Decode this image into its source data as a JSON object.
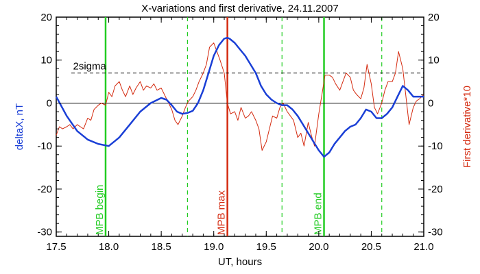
{
  "chart_data": {
    "type": "line",
    "title": "X-variations and first derivative, 24.11.2007",
    "xlabel": "UT, hours",
    "ylabel_left": "deltaX, nT",
    "ylabel_right": "First derivative*10",
    "xlim": [
      17.5,
      21.0
    ],
    "ylim": [
      -31,
      20
    ],
    "xticks": [
      17.5,
      18.0,
      18.5,
      19.0,
      19.5,
      20.0,
      20.5,
      21.0
    ],
    "xtick_labels": [
      "17.5",
      "18.0",
      "18.5",
      "19.0",
      "19.5",
      "20.0",
      "20.5",
      "21.0"
    ],
    "yticks": [
      -30,
      -20,
      -10,
      0,
      10,
      20
    ],
    "ytick_labels": [
      "-30",
      "-20",
      "-10",
      "0",
      "10",
      "20"
    ],
    "sigma_level": 7,
    "sigma_label": "2sigma",
    "colors": {
      "deltaX": "#1a3fd6",
      "derivative": "#d42b10",
      "begin_end": "#22cc22",
      "max": "#d42b10"
    },
    "markers": [
      {
        "x": 17.97,
        "label": "MPB begin",
        "kind": "begin_end"
      },
      {
        "x": 19.13,
        "label": "MPB max",
        "kind": "max"
      },
      {
        "x": 20.05,
        "label": "MPB end",
        "kind": "begin_end"
      }
    ],
    "dashed_markers_x": [
      18.75,
      19.65,
      20.6
    ],
    "series": [
      {
        "key": "deltaX",
        "x": [
          17.5,
          17.6,
          17.7,
          17.8,
          17.9,
          18.0,
          18.1,
          18.2,
          18.3,
          18.4,
          18.5,
          18.55,
          18.6,
          18.65,
          18.7,
          18.75,
          18.8,
          18.85,
          18.9,
          18.95,
          19.0,
          19.05,
          19.1,
          19.13,
          19.15,
          19.2,
          19.25,
          19.3,
          19.35,
          19.4,
          19.45,
          19.5,
          19.55,
          19.6,
          19.65,
          19.7,
          19.75,
          19.8,
          19.85,
          19.9,
          19.95,
          20.0,
          20.05,
          20.1,
          20.15,
          20.2,
          20.25,
          20.3,
          20.35,
          20.4,
          20.45,
          20.5,
          20.55,
          20.6,
          20.65,
          20.7,
          20.75,
          20.8,
          20.85,
          20.9,
          20.95,
          21.0
        ],
        "y": [
          1.5,
          -3,
          -6.5,
          -8.5,
          -9.5,
          -10,
          -8,
          -5,
          -2,
          0,
          1.2,
          0.8,
          -0.5,
          -2,
          -2.5,
          -2.3,
          -1.8,
          0,
          3,
          7,
          11,
          13.5,
          15,
          15.2,
          15,
          14,
          12.5,
          11,
          9,
          7,
          4,
          2,
          0.8,
          0,
          -0.5,
          -0.5,
          -1.5,
          -3,
          -5,
          -7,
          -9,
          -11,
          -12.5,
          -11.5,
          -9.5,
          -8,
          -6.5,
          -5.5,
          -5,
          -3.5,
          -1.5,
          -2,
          -3.5,
          -3.5,
          -2.5,
          -1,
          1.5,
          4,
          3,
          1.5,
          1.5,
          1.5
        ]
      },
      {
        "key": "derivative",
        "x": [
          17.5,
          17.53,
          17.56,
          17.6,
          17.63,
          17.66,
          17.7,
          17.73,
          17.76,
          17.8,
          17.83,
          17.86,
          17.9,
          17.93,
          17.97,
          18.0,
          18.03,
          18.06,
          18.1,
          18.13,
          18.16,
          18.2,
          18.23,
          18.26,
          18.3,
          18.33,
          18.36,
          18.4,
          18.43,
          18.46,
          18.5,
          18.53,
          18.56,
          18.6,
          18.63,
          18.66,
          18.7,
          18.73,
          18.76,
          18.8,
          18.83,
          18.86,
          18.9,
          18.93,
          18.96,
          19.0,
          19.03,
          19.06,
          19.1,
          19.13,
          19.16,
          19.2,
          19.23,
          19.26,
          19.3,
          19.33,
          19.36,
          19.4,
          19.43,
          19.46,
          19.5,
          19.53,
          19.56,
          19.6,
          19.63,
          19.66,
          19.7,
          19.73,
          19.76,
          19.8,
          19.83,
          19.86,
          19.9,
          19.93,
          19.96,
          20.0,
          20.03,
          20.06,
          20.1,
          20.13,
          20.16,
          20.2,
          20.23,
          20.26,
          20.3,
          20.33,
          20.36,
          20.4,
          20.43,
          20.46,
          20.5,
          20.53,
          20.56,
          20.6,
          20.63,
          20.66,
          20.7,
          20.73,
          20.76,
          20.8,
          20.83,
          20.86,
          20.9,
          20.93,
          20.96,
          21.0
        ],
        "y": [
          -7.5,
          -5.5,
          -6,
          -5.5,
          -5,
          -6,
          -5,
          -5.5,
          -6,
          -3.5,
          -4,
          -1.5,
          -0.5,
          0,
          -0.5,
          2.5,
          1.5,
          4,
          5,
          3,
          1.5,
          4,
          2,
          3.5,
          5,
          3,
          4,
          3.5,
          4.5,
          3,
          3.5,
          2,
          0.5,
          -1.5,
          -4,
          -5,
          -3,
          -1,
          0.5,
          1.5,
          3,
          5,
          7,
          9,
          13,
          14,
          12,
          10,
          7,
          0,
          -2.5,
          -2,
          -4,
          -1,
          -3.5,
          -3,
          -2,
          -4,
          -6,
          -11,
          -9,
          -6,
          -3,
          -3.5,
          -1,
          0,
          -2,
          -3,
          -4,
          -8,
          -7,
          -10,
          -4.5,
          -7.5,
          -10,
          -2.5,
          2,
          6.5,
          6.5,
          6,
          4.5,
          3,
          5,
          7,
          6,
          3,
          2,
          1,
          3.5,
          9,
          4.5,
          -1,
          -2.5,
          0,
          3,
          5,
          5,
          7,
          12,
          8,
          1.5,
          -5,
          -1,
          0.5,
          1,
          2
        ]
      }
    ]
  }
}
